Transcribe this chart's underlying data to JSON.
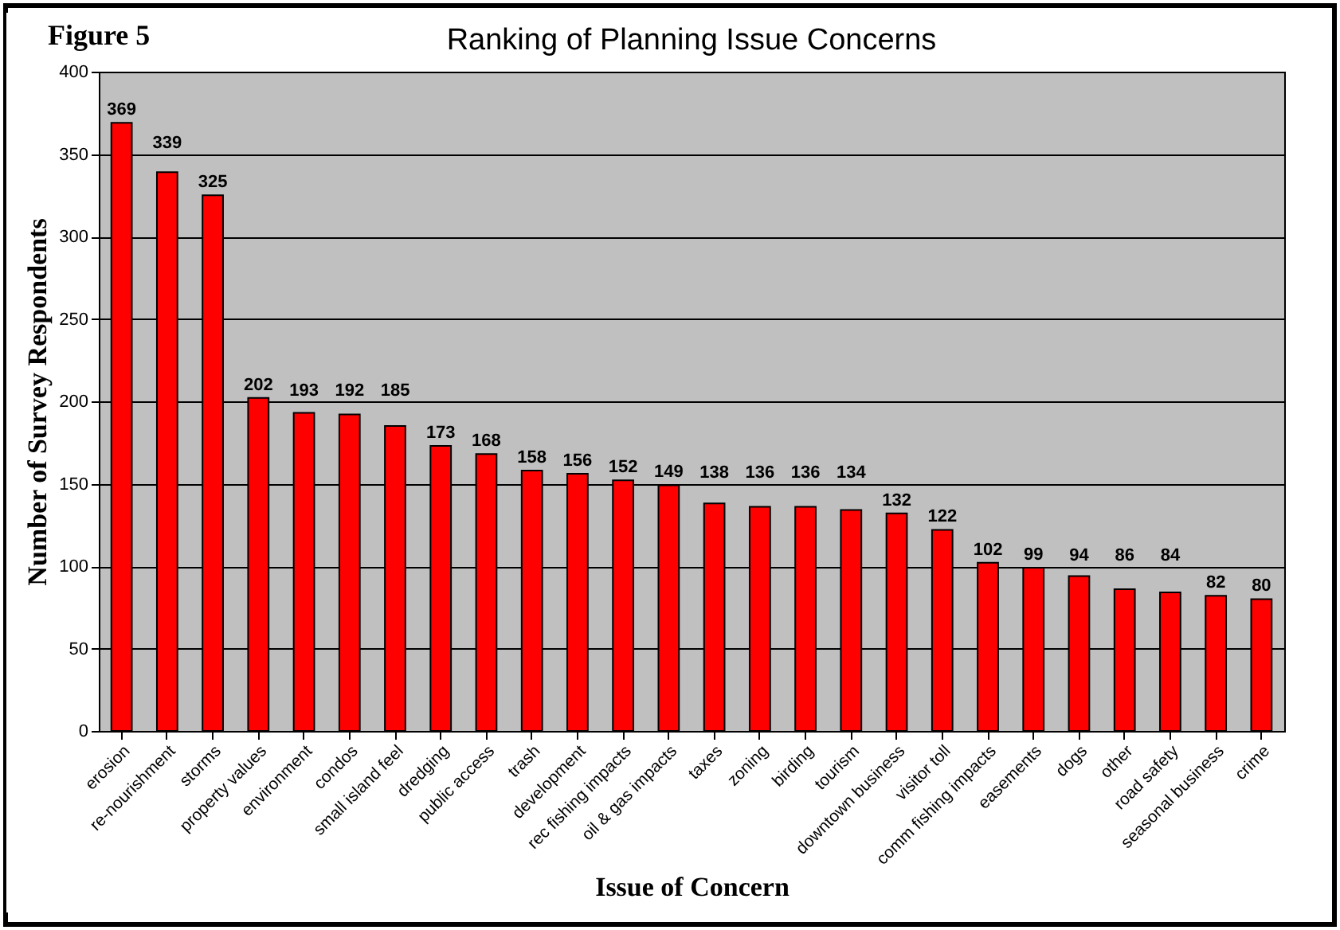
{
  "chart_data": {
    "type": "bar",
    "title": "Ranking of Planning Issue Concerns",
    "xlabel": "Issue of Concern",
    "ylabel": "Number of Survey Respondents",
    "annotations": [
      "Figure 5"
    ],
    "categories": [
      "erosion",
      "re-nourishment",
      "storms",
      "property values",
      "environment",
      "condos",
      "small island feel",
      "dredging",
      "public access",
      "trash",
      "development",
      "rec fishing impacts",
      "oil & gas impacts",
      "taxes",
      "zoning",
      "birding",
      "tourism",
      "downtown business",
      "visitor toll",
      "comm fishing impacts",
      "easements",
      "dogs",
      "other",
      "road safety",
      "seasonal business",
      "crime"
    ],
    "values": [
      369,
      339,
      325,
      202,
      193,
      192,
      185,
      173,
      168,
      158,
      156,
      152,
      149,
      138,
      136,
      136,
      134,
      132,
      122,
      102,
      99,
      94,
      86,
      84,
      82,
      80
    ],
    "color": "#ff0000",
    "ylim": [
      0,
      400
    ],
    "yticks": [
      0,
      50,
      100,
      150,
      200,
      250,
      300,
      350,
      400
    ],
    "grid": "y",
    "data_labels": true
  }
}
